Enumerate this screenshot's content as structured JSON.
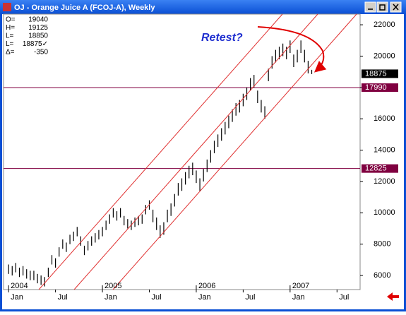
{
  "window_title": "OJ - Orange Juice A (FCOJ-A), Weekly",
  "chart_data": {
    "type": "ohlc",
    "info": [
      [
        "O=",
        "19040"
      ],
      [
        "H=",
        "19125"
      ],
      [
        "L=",
        "18850"
      ],
      [
        "L=",
        "18875✓"
      ],
      [
        "Δ=",
        "-350"
      ]
    ],
    "high": [
      6700,
      6600,
      6800,
      6500,
      6600,
      6400,
      6300,
      6300,
      6100,
      6000,
      5900,
      6500,
      7300,
      7100,
      7800,
      8300,
      8100,
      8600,
      8800,
      9100,
      8500,
      7900,
      8200,
      8500,
      8700,
      8900,
      9100,
      9500,
      9900,
      10300,
      10100,
      10300,
      9800,
      9600,
      9500,
      9700,
      9800,
      9900,
      10500,
      10800,
      10200,
      9700,
      9200,
      9400,
      10200,
      10600,
      11200,
      11900,
      12200,
      12600,
      13000,
      13200,
      12700,
      12200,
      12800,
      13400,
      14000,
      14600,
      15000,
      15400,
      15800,
      16200,
      16600,
      17000,
      17200,
      17600,
      18000,
      18600,
      18800,
      17800,
      17200,
      16800,
      19200,
      20000,
      20400,
      20600,
      20800,
      20600,
      21000,
      20100,
      20400,
      21000,
      20400,
      19700,
      19125
    ],
    "low": [
      6100,
      6000,
      6200,
      5900,
      6000,
      5800,
      5700,
      5700,
      5500,
      5400,
      5300,
      5900,
      6700,
      6500,
      7200,
      7700,
      7500,
      8000,
      8200,
      8500,
      7900,
      7300,
      7600,
      7900,
      8100,
      8300,
      8500,
      8900,
      9300,
      9700,
      9500,
      9700,
      9200,
      9000,
      8900,
      9100,
      9200,
      9300,
      9900,
      10200,
      9400,
      8900,
      8400,
      8600,
      9400,
      9800,
      10400,
      11100,
      11400,
      11800,
      12200,
      12400,
      11900,
      11400,
      12000,
      12600,
      13200,
      13800,
      14200,
      14600,
      15000,
      15400,
      15800,
      16200,
      16400,
      16800,
      17200,
      17800,
      18000,
      17000,
      16400,
      16000,
      18400,
      19200,
      19600,
      19800,
      20000,
      19800,
      20200,
      19300,
      19600,
      20200,
      19600,
      18900,
      18850
    ],
    "ylim": [
      5100,
      22680
    ],
    "yticks": [
      6000,
      8000,
      10000,
      12000,
      14000,
      16000,
      18000,
      20000,
      22000
    ],
    "xlim": [
      -1.4,
      97.4
    ],
    "xticks": [
      {
        "value": 0,
        "label": "Jan"
      },
      {
        "value": 13,
        "label": "Jul"
      },
      {
        "value": 26,
        "label": "Jan"
      },
      {
        "value": 39,
        "label": "Jul"
      },
      {
        "value": 52,
        "label": "Jan"
      },
      {
        "value": 65,
        "label": "Jul"
      },
      {
        "value": 78,
        "label": "Jan"
      },
      {
        "value": 91,
        "label": "Jul"
      }
    ],
    "year_ticks": [
      {
        "value": 0,
        "label": "2004"
      },
      {
        "value": 26,
        "label": "2005"
      },
      {
        "value": 52,
        "label": "2006"
      },
      {
        "value": 78,
        "label": "2007"
      }
    ],
    "hlines": [
      17990,
      12825
    ],
    "hline_color": "#800040",
    "last": 18875,
    "annotation": "Retest?"
  }
}
